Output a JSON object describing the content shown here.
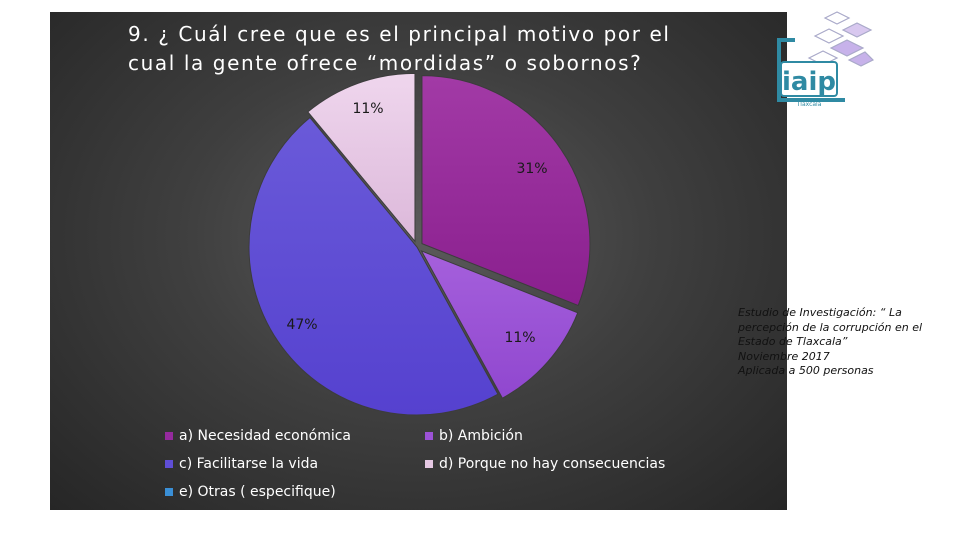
{
  "slide": {
    "title_line1": "9. ¿ Cuál cree que es el principal motivo por el",
    "title_line2": "cual la gente ofrece “mordidas” o sobornos?",
    "source_line1": "Estudio de Investigación: “ La",
    "source_line2": "percepción de la corrupción en el",
    "source_line3": "Estado de Tlaxcala”",
    "source_line4": "Noviembre 2017",
    "source_line5": "Aplicada a 500 personas",
    "logo_text": "iaip",
    "logo_subtext": "Tlaxcala"
  },
  "chart_data": {
    "type": "pie",
    "title": "9. ¿ Cuál cree que es el principal motivo por el cual la gente ofrece “mordidas” o sobornos?",
    "categories": [
      "a) Necesidad económica",
      "b) Ambición",
      "c) Facilitarse la vida",
      "d) Porque no hay consecuencias",
      "e) Otras ( especifique)"
    ],
    "values": [
      31,
      11,
      47,
      11,
      0
    ],
    "labels": [
      "31%",
      "11%",
      "47%",
      "11%",
      ""
    ],
    "colors": [
      "#952a9e",
      "#9c52d6",
      "#5f4ed6",
      "#e5c8e3",
      "#3a8fd6"
    ],
    "legend_position": "bottom"
  }
}
